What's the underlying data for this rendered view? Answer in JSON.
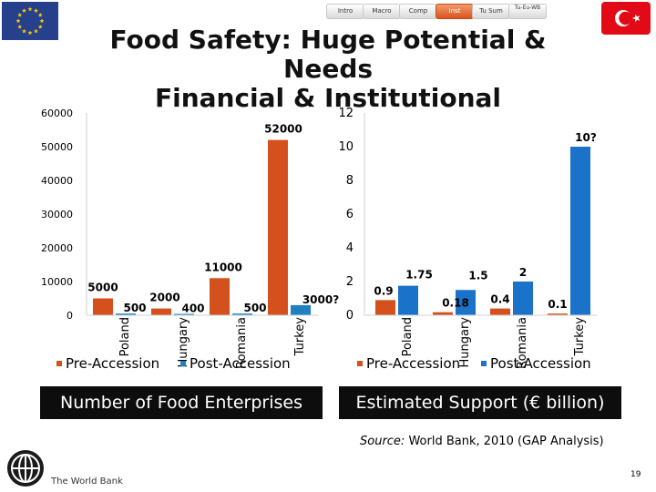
{
  "header": {
    "nav_tabs": [
      {
        "label": "Intro",
        "active": false
      },
      {
        "label": "Macro",
        "active": false
      },
      {
        "label": "Comp",
        "active": false
      },
      {
        "label": "Inst",
        "active": true
      },
      {
        "label": "Tu Sum",
        "active": false
      },
      {
        "label": "Tu-Eu-WB",
        "active": false
      }
    ],
    "title_line1": "Food Safety: Huge Potential & Needs",
    "title_line2": "Financial & Institutional"
  },
  "colors": {
    "pre_accession": "#d4501c",
    "post_accession_left": "#1f7fc0",
    "post_accession_right": "#1a73c9",
    "label_background": "#0d0d0d",
    "eu_flag": "#27408b",
    "turkey_flag": "#e30a17"
  },
  "chart_data": [
    {
      "type": "bar",
      "title": "Number of Food Enterprises",
      "categories": [
        "Poland",
        "Hungary",
        "Romania",
        "Turkey"
      ],
      "series": [
        {
          "name": "Pre-Accession",
          "values": [
            5000,
            2000,
            11000,
            52000
          ],
          "labels": [
            "5000",
            "2000",
            "11000",
            "52000"
          ]
        },
        {
          "name": "Post-Accession",
          "values": [
            500,
            400,
            500,
            3000
          ],
          "labels": [
            "500",
            "400",
            "500",
            "3000?"
          ]
        }
      ],
      "ylim": [
        0,
        60000
      ],
      "yticks": [
        "0",
        "10000",
        "20000",
        "30000",
        "40000",
        "50000",
        "60000"
      ],
      "legend": "bottom",
      "grid": false
    },
    {
      "type": "bar",
      "title": "Estimated Support (€ billion)",
      "categories": [
        "Poland",
        "Hungary",
        "Romania",
        "Turkey"
      ],
      "series": [
        {
          "name": "Pre-Accession",
          "values": [
            0.9,
            0.18,
            0.4,
            0.1
          ],
          "labels": [
            "0.9",
            "0.18",
            "0.4",
            "0.1"
          ]
        },
        {
          "name": "Post-Accession",
          "values": [
            1.75,
            1.5,
            2,
            10
          ],
          "labels": [
            "1.75",
            "1.5",
            "2",
            "10?"
          ]
        }
      ],
      "ylim": [
        0,
        12
      ],
      "yticks": [
        "0",
        "2",
        "4",
        "6",
        "8",
        "10",
        "12"
      ],
      "legend": "bottom",
      "grid": false
    }
  ],
  "footer": {
    "source_label": "Source:",
    "source_text": " World Bank, 2010 (GAP Analysis)",
    "logo_text": "The World Bank",
    "page_number": "19"
  }
}
